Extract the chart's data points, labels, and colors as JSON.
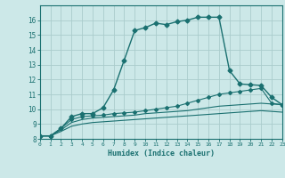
{
  "background_color": "#cce8e8",
  "grid_color": "#aacccc",
  "line_color": "#1a7070",
  "xlabel": "Humidex (Indice chaleur)",
  "xlim": [
    0,
    23
  ],
  "ylim": [
    8,
    17
  ],
  "xticks": [
    0,
    1,
    2,
    3,
    4,
    5,
    6,
    7,
    8,
    9,
    10,
    11,
    12,
    13,
    14,
    15,
    16,
    17,
    18,
    19,
    20,
    21,
    22,
    23
  ],
  "yticks": [
    8,
    9,
    10,
    11,
    12,
    13,
    14,
    15,
    16
  ],
  "series": [
    {
      "x": [
        0,
        1,
        2,
        3,
        4,
        5,
        6,
        7,
        8,
        9,
        10,
        11,
        12,
        13,
        14,
        15,
        16,
        17,
        18,
        19,
        20,
        21,
        22,
        23
      ],
      "y": [
        8.2,
        8.2,
        8.7,
        9.5,
        9.7,
        9.7,
        10.1,
        11.3,
        13.3,
        15.3,
        15.5,
        15.8,
        15.7,
        15.9,
        16.0,
        16.2,
        16.2,
        16.2,
        12.6,
        11.7,
        11.65,
        11.6,
        10.8,
        10.3
      ],
      "marker": "D",
      "markersize": 2.5,
      "linewidth": 1.0
    },
    {
      "x": [
        0,
        1,
        2,
        3,
        4,
        5,
        6,
        7,
        8,
        9,
        10,
        11,
        12,
        13,
        14,
        15,
        16,
        17,
        18,
        19,
        20,
        21,
        22,
        23
      ],
      "y": [
        8.2,
        8.2,
        8.7,
        9.3,
        9.5,
        9.55,
        9.6,
        9.7,
        9.75,
        9.8,
        9.9,
        10.0,
        10.1,
        10.2,
        10.4,
        10.6,
        10.8,
        11.0,
        11.1,
        11.2,
        11.3,
        11.4,
        10.4,
        10.3
      ],
      "marker": "D",
      "markersize": 2.0,
      "linewidth": 0.8
    },
    {
      "x": [
        0,
        1,
        2,
        3,
        4,
        5,
        6,
        7,
        8,
        9,
        10,
        11,
        12,
        13,
        14,
        15,
        16,
        17,
        18,
        19,
        20,
        21,
        22,
        23
      ],
      "y": [
        8.2,
        8.2,
        8.6,
        9.1,
        9.3,
        9.4,
        9.45,
        9.5,
        9.55,
        9.6,
        9.7,
        9.75,
        9.8,
        9.85,
        9.9,
        10.0,
        10.1,
        10.2,
        10.25,
        10.3,
        10.35,
        10.4,
        10.35,
        10.3
      ],
      "marker": null,
      "markersize": 0,
      "linewidth": 0.8
    },
    {
      "x": [
        0,
        1,
        2,
        3,
        4,
        5,
        6,
        7,
        8,
        9,
        10,
        11,
        12,
        13,
        14,
        15,
        16,
        17,
        18,
        19,
        20,
        21,
        22,
        23
      ],
      "y": [
        8.2,
        8.2,
        8.5,
        8.85,
        9.0,
        9.1,
        9.15,
        9.2,
        9.25,
        9.3,
        9.35,
        9.4,
        9.45,
        9.5,
        9.55,
        9.6,
        9.65,
        9.7,
        9.75,
        9.8,
        9.85,
        9.9,
        9.85,
        9.8
      ],
      "marker": null,
      "markersize": 0,
      "linewidth": 0.8
    }
  ]
}
